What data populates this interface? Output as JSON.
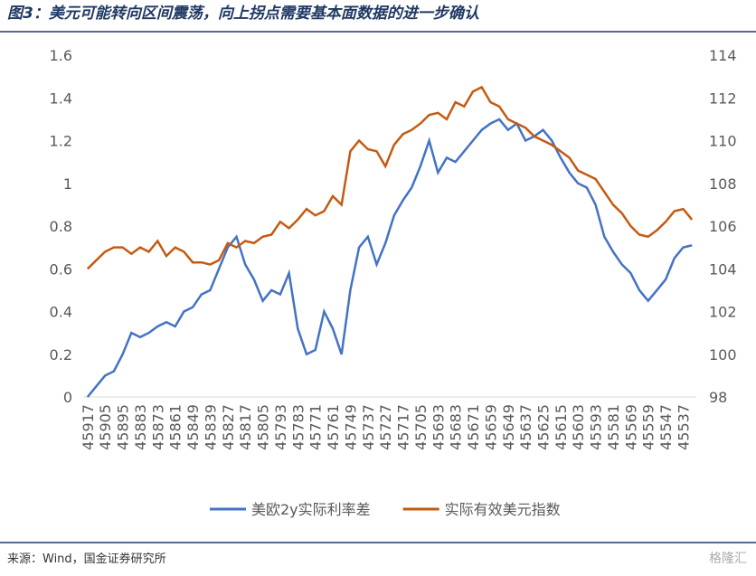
{
  "chart_data": {
    "type": "line",
    "title": "图3：美元可能转向区间震荡，向上拐点需要基本面数据的进一步确认",
    "source": "来源：Wind，国金证券研究所",
    "watermark": "格隆汇",
    "categories": [
      "45917",
      null,
      "45905",
      null,
      "45895",
      null,
      "45883",
      null,
      "45873",
      null,
      "45861",
      null,
      "45849",
      null,
      "45839",
      null,
      "45827",
      null,
      "45817",
      null,
      "45805",
      null,
      "45793",
      null,
      "45783",
      null,
      "45771",
      null,
      "45761",
      null,
      "45749",
      null,
      "45737",
      null,
      "45727",
      null,
      "45717",
      null,
      "45705",
      null,
      "45693",
      null,
      "45683",
      null,
      "45671",
      null,
      "45659",
      null,
      "45649",
      null,
      "45637",
      null,
      "45625",
      null,
      "45615",
      null,
      "45603",
      null,
      "45593",
      null,
      "45581",
      null,
      "45569",
      null,
      "45559",
      null,
      "45547",
      null,
      "45537",
      null
    ],
    "series": [
      {
        "name": "美欧2y实际利率差",
        "color": "#4472c4",
        "values": [
          0,
          0.05,
          0.1,
          0.12,
          0.2,
          0.3,
          0.28,
          0.3,
          0.33,
          0.35,
          0.33,
          0.4,
          0.42,
          0.48,
          0.5,
          0.6,
          0.7,
          0.75,
          0.62,
          0.55,
          0.45,
          0.5,
          0.48,
          0.58,
          0.32,
          0.2,
          0.22,
          0.4,
          0.32,
          0.2,
          0.5,
          0.7,
          0.75,
          0.62,
          0.72,
          0.85,
          0.92,
          0.98,
          1.08,
          1.2,
          1.05,
          1.12,
          1.1,
          1.15,
          1.2,
          1.25,
          1.28,
          1.3,
          1.25,
          1.28,
          1.2,
          1.22,
          1.25,
          1.2,
          1.12,
          1.05,
          1.0,
          0.98,
          0.9,
          0.75,
          0.68,
          0.62,
          0.58,
          0.5,
          0.45,
          0.5,
          0.55,
          0.65,
          0.7,
          0.71
        ]
      },
      {
        "name": "实际有效美元指数",
        "color": "#c55a11",
        "axis": "y2",
        "values": [
          104.0,
          104.4,
          104.8,
          105.0,
          105.0,
          104.7,
          105.0,
          104.8,
          105.3,
          104.6,
          105.0,
          104.8,
          104.3,
          104.3,
          104.2,
          104.4,
          105.2,
          105.0,
          105.3,
          105.2,
          105.5,
          105.6,
          106.2,
          105.9,
          106.3,
          106.8,
          106.5,
          106.7,
          107.4,
          107.0,
          109.5,
          110.0,
          109.6,
          109.5,
          108.8,
          109.8,
          110.3,
          110.5,
          110.8,
          111.2,
          111.3,
          111.0,
          111.8,
          111.6,
          112.3,
          112.5,
          111.8,
          111.6,
          111.0,
          110.8,
          110.6,
          110.2,
          110.0,
          109.8,
          109.5,
          109.2,
          108.6,
          108.4,
          108.2,
          107.6,
          107.0,
          106.6,
          106.0,
          105.6,
          105.5,
          105.8,
          106.2,
          106.7,
          106.8,
          106.3
        ]
      }
    ],
    "ylim": [
      0,
      1.6
    ],
    "yticks": [
      0,
      0.2,
      0.4,
      0.6,
      0.8,
      1,
      1.2,
      1.4,
      1.6
    ],
    "y2lim": [
      98,
      114
    ],
    "y2ticks": [
      98,
      100,
      102,
      104,
      106,
      108,
      110,
      112,
      114
    ],
    "grid": false,
    "legend": "bottom"
  }
}
